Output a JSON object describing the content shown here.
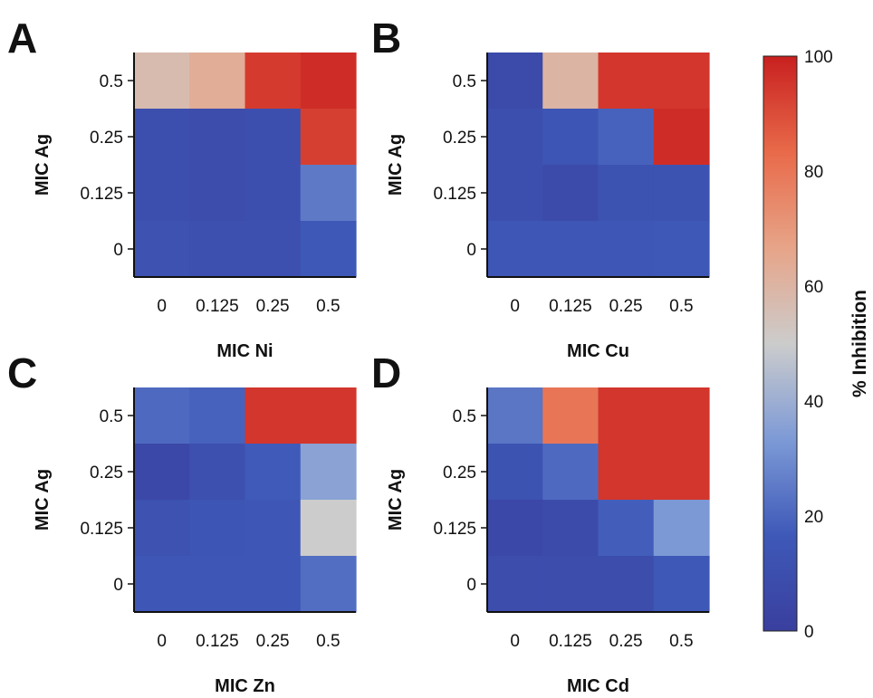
{
  "chart_data": [
    {
      "type": "heatmap",
      "panel": "A",
      "xlabel": "MIC Ni",
      "ylabel": "MIC Ag",
      "x": [
        "0",
        "0.125",
        "0.25",
        "0.5"
      ],
      "y": [
        "0.5",
        "0.25",
        "0.125",
        "0"
      ],
      "values": [
        [
          57,
          63,
          94,
          97
        ],
        [
          10,
          9,
          10,
          93
        ],
        [
          10,
          9,
          10,
          25
        ],
        [
          12,
          11,
          11,
          16
        ]
      ]
    },
    {
      "type": "heatmap",
      "panel": "B",
      "xlabel": "MIC Cu",
      "ylabel": "MIC Ag",
      "x": [
        "0",
        "0.125",
        "0.25",
        "0.5"
      ],
      "y": [
        "0.5",
        "0.25",
        "0.125",
        "0"
      ],
      "values": [
        [
          7,
          60,
          95,
          95
        ],
        [
          10,
          14,
          19,
          97
        ],
        [
          10,
          8,
          13,
          13
        ],
        [
          15,
          15,
          15,
          16
        ]
      ]
    },
    {
      "type": "heatmap",
      "panel": "C",
      "xlabel": "MIC Zn",
      "ylabel": "MIC Ag",
      "x": [
        "0",
        "0.125",
        "0.25",
        "0.5"
      ],
      "y": [
        "0.5",
        "0.25",
        "0.125",
        "0"
      ],
      "values": [
        [
          21,
          19,
          95,
          95
        ],
        [
          6,
          11,
          17,
          36
        ],
        [
          12,
          14,
          15,
          50
        ],
        [
          15,
          15,
          15,
          22
        ]
      ]
    },
    {
      "type": "heatmap",
      "panel": "D",
      "xlabel": "MIC Cd",
      "ylabel": "MIC Ag",
      "x": [
        "0",
        "0.125",
        "0.25",
        "0.5"
      ],
      "y": [
        "0.5",
        "0.25",
        "0.125",
        "0"
      ],
      "values": [
        [
          24,
          80,
          95,
          95
        ],
        [
          13,
          21,
          95,
          95
        ],
        [
          6,
          8,
          18,
          33
        ],
        [
          9,
          9,
          9,
          16
        ]
      ]
    }
  ],
  "colorbar": {
    "label": "% Inhibition",
    "min": 0,
    "max": 100,
    "ticks": [
      "0",
      "20",
      "40",
      "60",
      "80",
      "100"
    ],
    "stops": [
      "#3a3f9e",
      "#3e59b8",
      "#7d9ad6",
      "#cccccc",
      "#e7a488",
      "#e86a4a",
      "#c8201f"
    ]
  }
}
